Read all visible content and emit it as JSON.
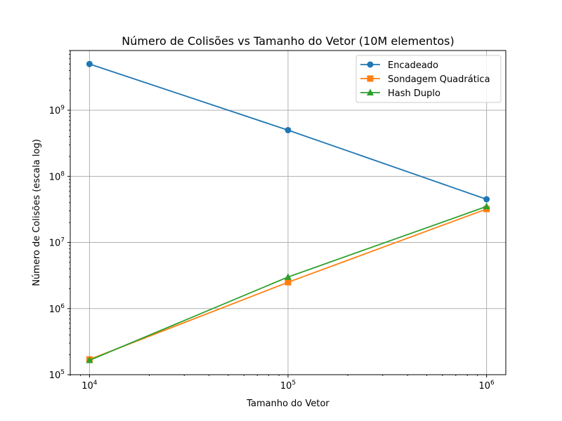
{
  "chart_data": {
    "type": "line",
    "title": "Número de Colisões vs Tamanho do Vetor (10M elementos)",
    "xlabel": "Tamanho do Vetor",
    "ylabel": "Número de Colisões (escala log)",
    "xscale": "log",
    "yscale": "log",
    "xlim": [
      8000,
      1250000
    ],
    "ylim": [
      100000,
      8000000000
    ],
    "x_ticks": [
      {
        "value": 10000,
        "base": "10",
        "exp": "4"
      },
      {
        "value": 100000,
        "base": "10",
        "exp": "5"
      },
      {
        "value": 1000000,
        "base": "10",
        "exp": "6"
      }
    ],
    "y_ticks": [
      {
        "value": 100000,
        "base": "10",
        "exp": "5"
      },
      {
        "value": 1000000,
        "base": "10",
        "exp": "6"
      },
      {
        "value": 10000000,
        "base": "10",
        "exp": "7"
      },
      {
        "value": 100000000,
        "base": "10",
        "exp": "8"
      },
      {
        "value": 1000000000,
        "base": "10",
        "exp": "9"
      }
    ],
    "grid": true,
    "legend_position": "top-right",
    "x": [
      10000,
      100000,
      1000000
    ],
    "series": [
      {
        "name": "Encadeado",
        "color": "#1f77b4",
        "marker": "circle",
        "values": [
          5000000000,
          500000000,
          45000000
        ]
      },
      {
        "name": "Sondagem Quadrática",
        "color": "#ff7f0e",
        "marker": "square",
        "values": [
          170000,
          2500000,
          32000000
        ]
      },
      {
        "name": "Hash Duplo",
        "color": "#2ca02c",
        "marker": "triangle",
        "values": [
          165000,
          3000000,
          35000000
        ]
      }
    ]
  }
}
